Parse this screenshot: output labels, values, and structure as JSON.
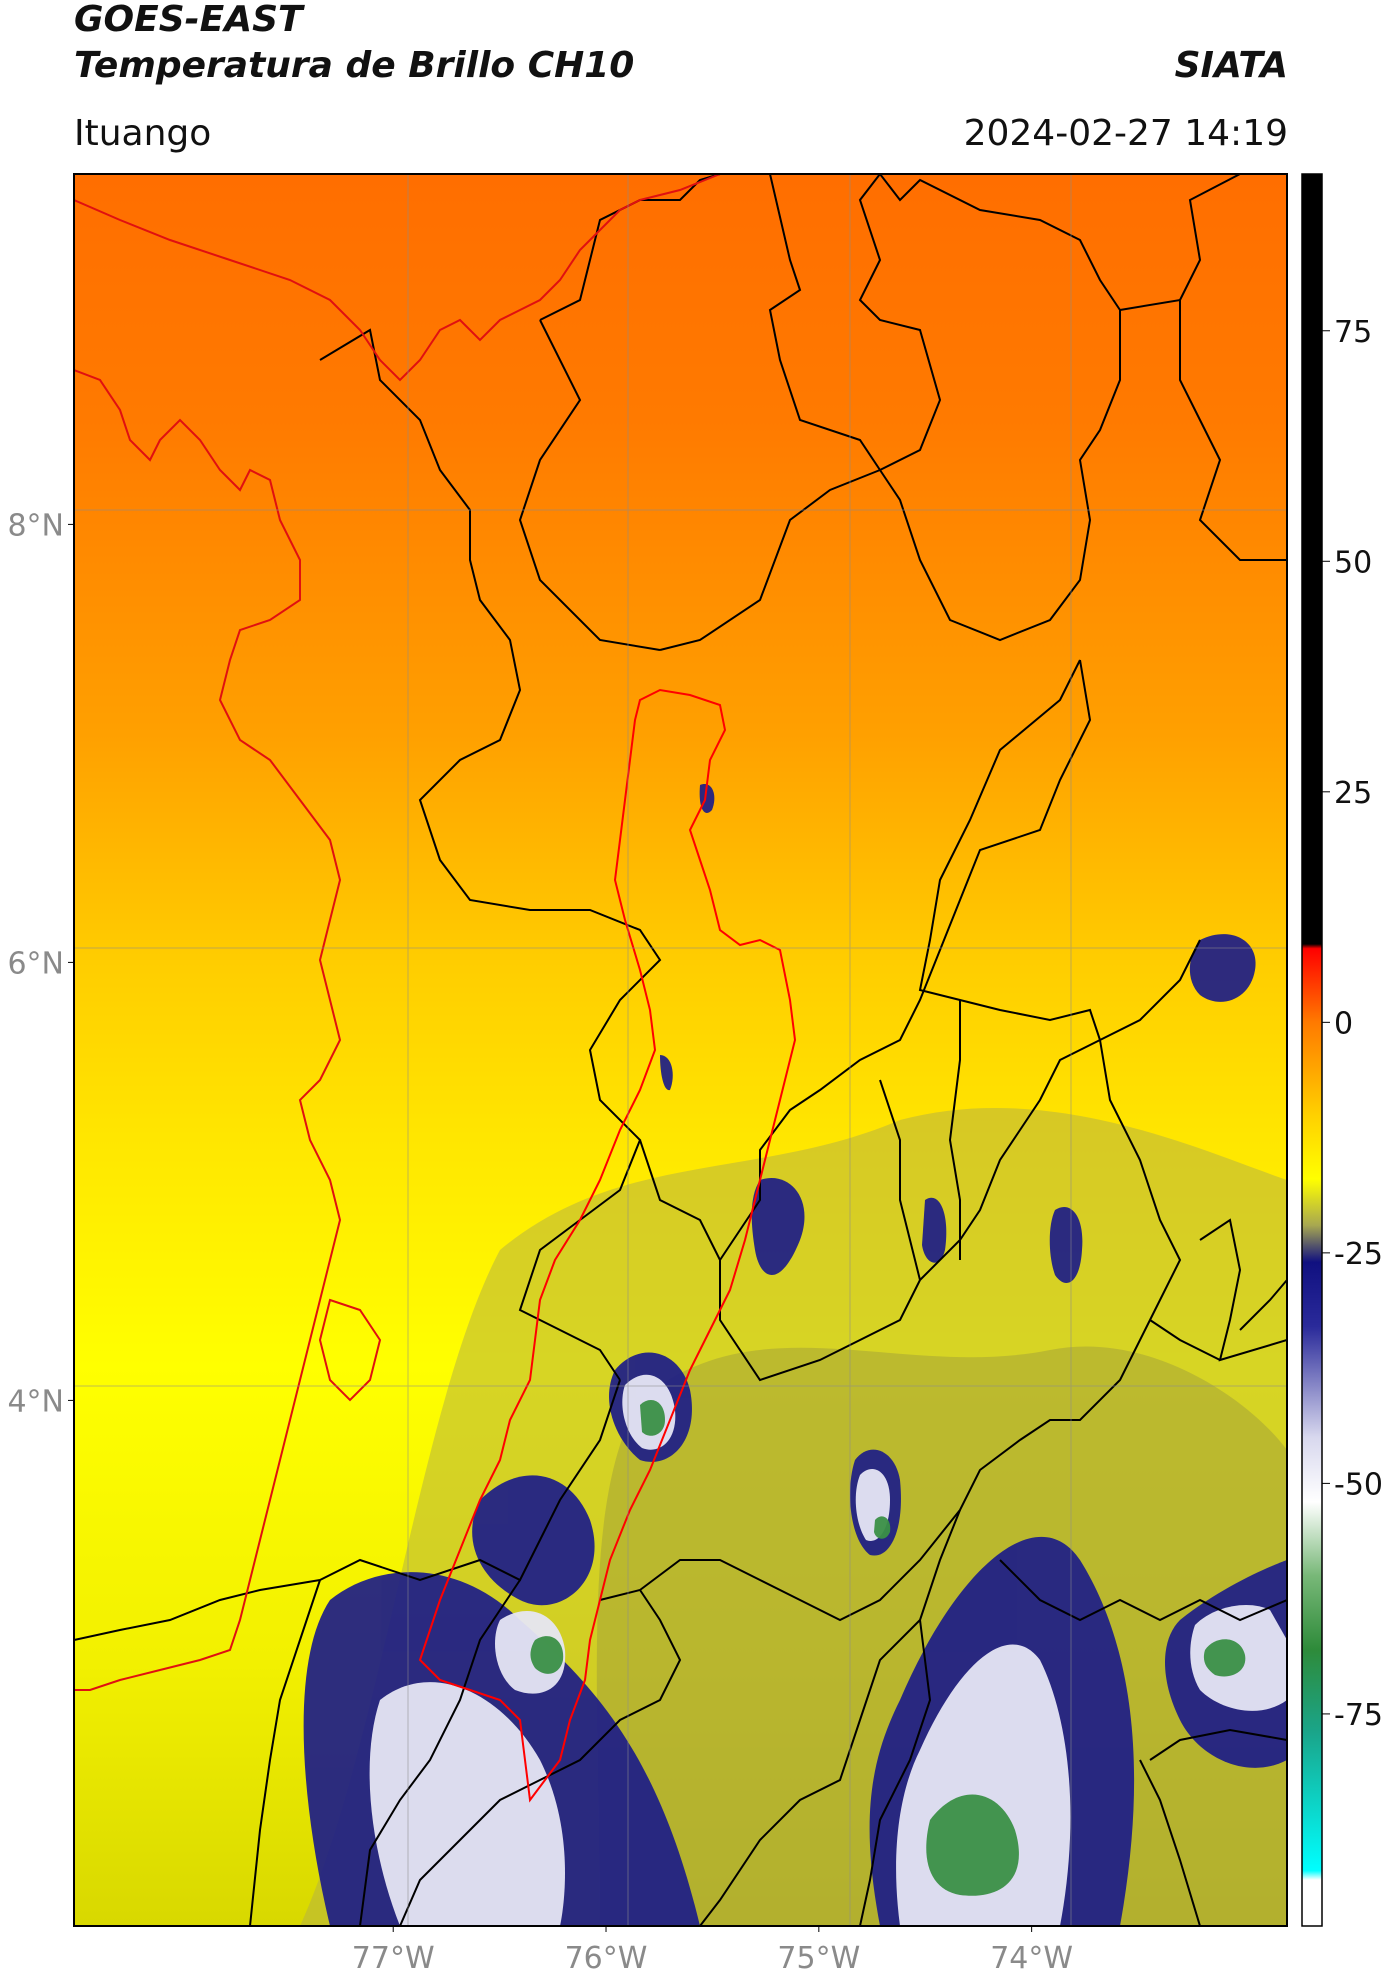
{
  "header": {
    "satellite": "GOES-EAST",
    "product": "Temperatura de Brillo CH10",
    "organization": "SIATA",
    "location": "Ituango",
    "datetime": "2024-02-27 14:19"
  },
  "map": {
    "lon_ticks": [
      "77°W",
      "76°W",
      "75°W",
      "74°W"
    ],
    "lat_ticks": [
      "8°N",
      "6°N",
      "4°N"
    ],
    "lon_range": [
      -78.5,
      -72.8
    ],
    "lat_range": [
      1.6,
      9.6
    ],
    "field": "brightness temperature",
    "basin_outline_color": "#ff0000",
    "border_color": "#000000"
  },
  "colorbar": {
    "ticks": [
      "75",
      "50",
      "25",
      "0",
      "-25",
      "-50",
      "-75"
    ],
    "range": [
      -98,
      92
    ],
    "stops": [
      {
        "v": 92,
        "c": "#000000"
      },
      {
        "v": 8.5,
        "c": "#000000"
      },
      {
        "v": 8,
        "c": "#ff0000"
      },
      {
        "v": 0,
        "c": "#ff7a00"
      },
      {
        "v": -10,
        "c": "#ffd000"
      },
      {
        "v": -17,
        "c": "#ffff00"
      },
      {
        "v": -22,
        "c": "#a8a850"
      },
      {
        "v": -26,
        "c": "#101080"
      },
      {
        "v": -33,
        "c": "#2a2a9a"
      },
      {
        "v": -45,
        "c": "#d8d8ee"
      },
      {
        "v": -52,
        "c": "#ffffff"
      },
      {
        "v": -60,
        "c": "#78b878"
      },
      {
        "v": -68,
        "c": "#2e8b3a"
      },
      {
        "v": -77,
        "c": "#1aa58a"
      },
      {
        "v": -92,
        "c": "#00ffff"
      },
      {
        "v": -93,
        "c": "#ffffff"
      },
      {
        "v": -98,
        "c": "#ffffff"
      }
    ]
  }
}
